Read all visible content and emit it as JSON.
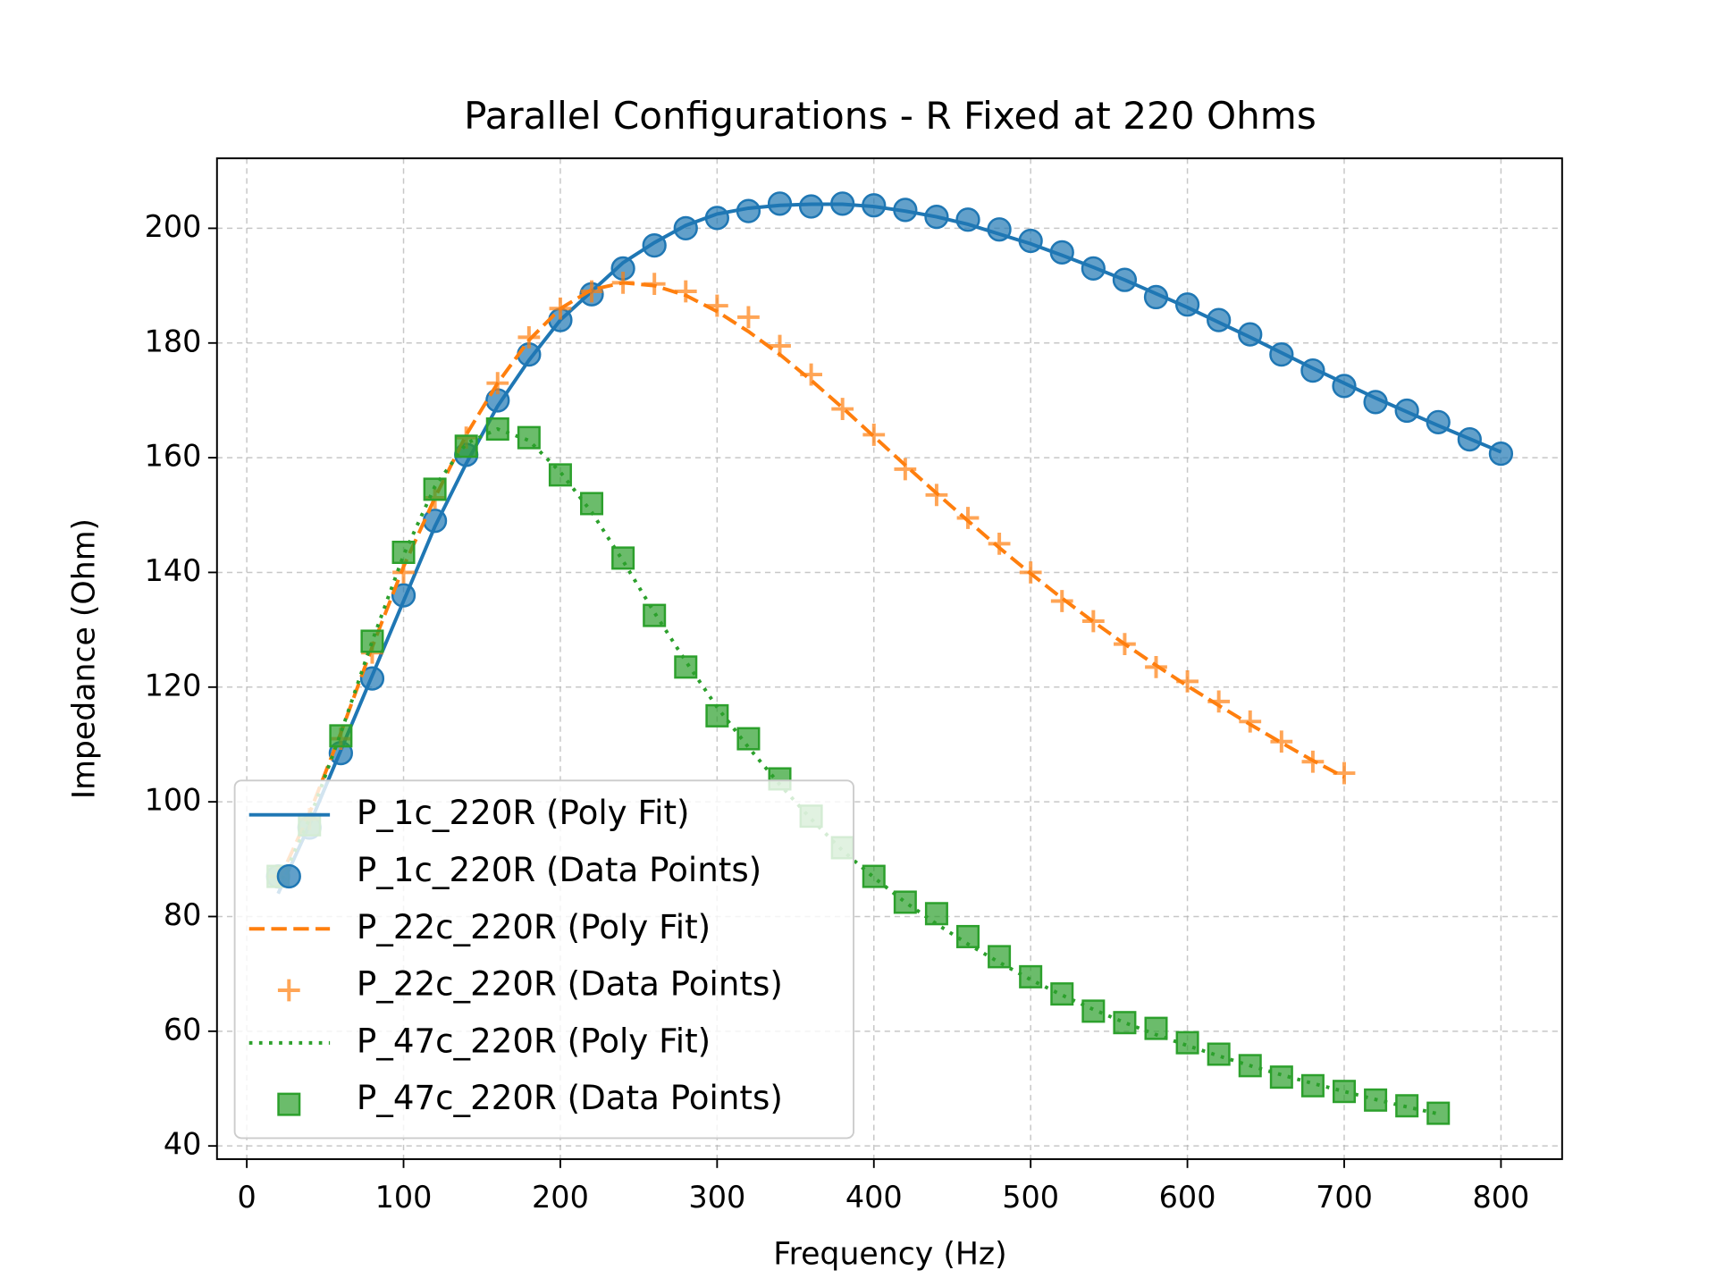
{
  "chart_data": {
    "type": "line",
    "title": "Parallel Configurations - R Fixed at 220 Ohms",
    "x_label": "Frequency (Hz)",
    "y_label": "Impedance (Ohm)",
    "xlim": [
      -19,
      839
    ],
    "ylim": [
      37.7,
      212.2
    ],
    "xticks": [
      0,
      100,
      200,
      300,
      400,
      500,
      600,
      700,
      800
    ],
    "yticks": [
      40,
      60,
      80,
      100,
      120,
      140,
      160,
      180,
      200
    ],
    "grid": true,
    "legend_loc": "lower left",
    "series": [
      {
        "name": "P_1c_220R (Poly Fit)",
        "color": "#1f77b4",
        "style": "solid",
        "x": [
          20,
          40,
          60,
          80,
          100,
          120,
          140,
          160,
          180,
          200,
          220,
          240,
          260,
          280,
          300,
          320,
          340,
          360,
          380,
          400,
          420,
          440,
          460,
          480,
          500,
          520,
          540,
          560,
          580,
          600,
          620,
          640,
          660,
          680,
          700,
          720,
          740,
          760,
          780,
          800
        ],
        "values": [
          84,
          96,
          109,
          122,
          135,
          148,
          159,
          169,
          177,
          184,
          189,
          194,
          197.5,
          200.5,
          202.5,
          203.5,
          204,
          204.2,
          204.2,
          203.8,
          203,
          202,
          200.7,
          199,
          197.3,
          195.3,
          193.2,
          191,
          188.6,
          186.2,
          183.6,
          181,
          178.3,
          175.6,
          173,
          170.4,
          168,
          165.6,
          163.3,
          161
        ]
      },
      {
        "name": "P_1c_220R (Data Points)",
        "color": "#1f77b4",
        "style": "circle",
        "x": [
          20,
          40,
          60,
          80,
          100,
          120,
          140,
          160,
          180,
          200,
          220,
          240,
          260,
          280,
          300,
          320,
          340,
          360,
          380,
          400,
          420,
          440,
          460,
          480,
          500,
          520,
          540,
          560,
          580,
          600,
          620,
          640,
          660,
          680,
          700,
          720,
          740,
          760,
          780,
          800
        ],
        "values": [
          87,
          95.5,
          108.5,
          121.5,
          136,
          149,
          160.5,
          170,
          178,
          184,
          188.5,
          193,
          197,
          200,
          201.8,
          203,
          204.3,
          203.8,
          204.3,
          204,
          203.2,
          202,
          201.5,
          199.8,
          197.8,
          195.8,
          193,
          191,
          188,
          186.7,
          184,
          181.5,
          178,
          175.2,
          172.5,
          169.7,
          168.2,
          166.2,
          163.2,
          160.7
        ]
      },
      {
        "name": "P_22c_220R (Poly Fit)",
        "color": "#ff7f0e",
        "style": "dashed",
        "x": [
          20,
          40,
          60,
          80,
          100,
          120,
          140,
          160,
          180,
          200,
          220,
          240,
          260,
          280,
          300,
          320,
          340,
          360,
          380,
          400,
          420,
          440,
          460,
          480,
          500,
          520,
          540,
          560,
          580,
          600,
          620,
          640,
          660,
          680,
          700
        ],
        "values": [
          86,
          98,
          112,
          127,
          141,
          153,
          164,
          173,
          180.5,
          186,
          189.3,
          190.5,
          190,
          188.3,
          185.5,
          182,
          178,
          173.5,
          168.7,
          163.7,
          158.7,
          153.8,
          149,
          144.3,
          139.8,
          135.5,
          131.4,
          127.5,
          123.8,
          120.2,
          116.8,
          113.5,
          110.3,
          107.2,
          104.3
        ]
      },
      {
        "name": "P_22c_220R (Data Points)",
        "color": "#ff7f0e",
        "style": "plus",
        "x": [
          20,
          40,
          60,
          80,
          100,
          120,
          140,
          160,
          180,
          200,
          220,
          240,
          260,
          280,
          300,
          320,
          340,
          360,
          380,
          400,
          420,
          440,
          460,
          480,
          500,
          520,
          540,
          560,
          580,
          600,
          620,
          640,
          660,
          680,
          700
        ],
        "values": [
          87,
          97,
          111,
          126,
          140,
          153,
          163.5,
          173,
          181,
          186,
          189,
          190.5,
          190.3,
          189,
          186.5,
          184.5,
          179.5,
          174.5,
          168.5,
          164,
          158,
          153.5,
          149.5,
          145,
          140,
          135,
          131.5,
          127.5,
          123.5,
          121,
          117.5,
          114,
          110.5,
          107,
          105
        ]
      },
      {
        "name": "P_47c_220R (Poly Fit)",
        "color": "#2ca02c",
        "style": "dotted",
        "x": [
          20,
          40,
          60,
          80,
          100,
          120,
          140,
          160,
          180,
          200,
          220,
          240,
          260,
          280,
          300,
          320,
          340,
          360,
          380,
          400,
          420,
          440,
          460,
          480,
          500,
          520,
          540,
          560,
          580,
          600,
          620,
          640,
          660,
          680,
          700,
          720,
          740,
          760
        ],
        "values": [
          85,
          97,
          112,
          128,
          143,
          155,
          162.5,
          165,
          163,
          157.5,
          150.5,
          142,
          133,
          124.5,
          116.5,
          109.5,
          103,
          97,
          91.5,
          86.8,
          82.5,
          78.7,
          75.2,
          72,
          69,
          66.3,
          63.8,
          61.5,
          59.4,
          57.5,
          55.7,
          54,
          52.4,
          50.9,
          49.5,
          48.1,
          46.8,
          45.6
        ]
      },
      {
        "name": "P_47c_220R (Data Points)",
        "color": "#2ca02c",
        "style": "square",
        "x": [
          20,
          40,
          60,
          80,
          100,
          120,
          140,
          160,
          180,
          200,
          220,
          240,
          260,
          280,
          300,
          320,
          340,
          360,
          380,
          400,
          420,
          440,
          460,
          480,
          500,
          520,
          540,
          560,
          580,
          600,
          620,
          640,
          660,
          680,
          700,
          720,
          740,
          760
        ],
        "values": [
          87,
          96,
          111.5,
          128,
          143.5,
          154.5,
          162,
          165,
          163.5,
          157,
          152,
          142.5,
          132.5,
          123.5,
          115,
          111,
          104,
          97.5,
          92,
          87,
          82.5,
          80.5,
          76.5,
          73,
          69.5,
          66.5,
          63.5,
          61.5,
          60.5,
          58,
          56,
          54,
          52,
          50.5,
          49.5,
          48,
          47,
          45.7
        ]
      }
    ]
  }
}
